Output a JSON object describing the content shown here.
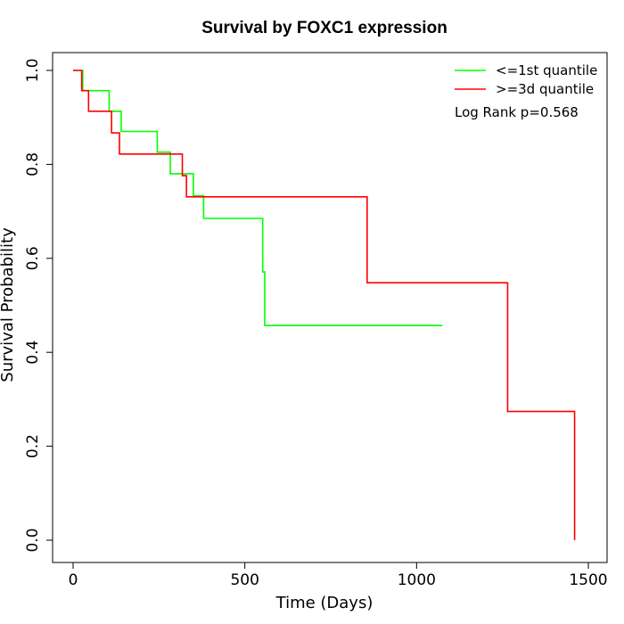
{
  "chart_data": {
    "type": "line",
    "title": "Survival by FOXC1 expression",
    "xlabel": "Time (Days)",
    "ylabel": "Survival Probability",
    "xlim": [
      0,
      1500
    ],
    "ylim": [
      0,
      1.0
    ],
    "x_ticks": [
      0,
      500,
      1000,
      1500
    ],
    "y_ticks": [
      0.0,
      0.2,
      0.4,
      0.6,
      0.8,
      1.0
    ],
    "x_tick_labels": [
      "0",
      "500",
      "1000",
      "1500"
    ],
    "y_tick_labels": [
      "0.0",
      "0.2",
      "0.4",
      "0.6",
      "0.8",
      "1.0"
    ],
    "step": true,
    "grid": false,
    "legend_position": "top-right",
    "annotation": "Log Rank p=0.568",
    "series": [
      {
        "name": "<=1st quantile",
        "color": "#00ff00",
        "x": [
          0,
          28,
          105,
          140,
          245,
          283,
          350,
          380,
          552,
          558,
          1075
        ],
        "y": [
          1.0,
          0.957,
          0.913,
          0.87,
          0.826,
          0.78,
          0.733,
          0.685,
          0.571,
          0.457,
          0.457
        ]
      },
      {
        "name": ">=3d quantile",
        "color": "#ff0000",
        "x": [
          0,
          25,
          45,
          112,
          135,
          318,
          330,
          856,
          1265,
          1460,
          1460
        ],
        "y": [
          1.0,
          0.957,
          0.913,
          0.867,
          0.822,
          0.776,
          0.731,
          0.548,
          0.274,
          0.274,
          0.0
        ]
      }
    ]
  }
}
